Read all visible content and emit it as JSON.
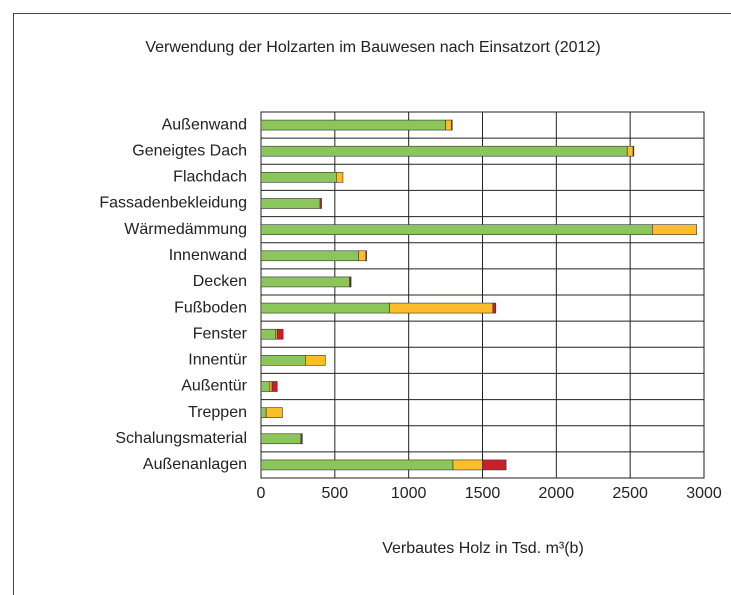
{
  "chart_data": {
    "type": "stacked-barh",
    "title": "Verwendung der Holzarten im Bauwesen nach Einsatzort (2012)",
    "xlabel": "Verbautes Holz in Tsd. m³(b)",
    "categories": [
      "Außenwand",
      "Geneigtes Dach",
      "Flachdach",
      "Fassadenbekleidung",
      "Wärmedämmung",
      "Innenwand",
      "Decken",
      "Fußboden",
      "Fenster",
      "Innentür",
      "Außentür",
      "Treppen",
      "Schalungsmaterial",
      "Außenanlagen"
    ],
    "series": [
      {
        "color": "#8cc55a",
        "values": [
          1250,
          2480,
          510,
          400,
          2650,
          660,
          600,
          870,
          100,
          300,
          60,
          35,
          270,
          1300
        ]
      },
      {
        "color": "#fbbd29",
        "values": [
          40,
          40,
          45,
          0,
          300,
          50,
          5,
          700,
          10,
          135,
          15,
          110,
          0,
          200
        ]
      },
      {
        "color": "#c8202a",
        "values": [
          5,
          5,
          0,
          10,
          0,
          5,
          5,
          20,
          40,
          0,
          35,
          0,
          10,
          160
        ]
      }
    ],
    "xlim": [
      0,
      3000
    ],
    "xticks": [
      0,
      500,
      1000,
      1500,
      2000,
      2500,
      3000
    ],
    "grid": true
  }
}
